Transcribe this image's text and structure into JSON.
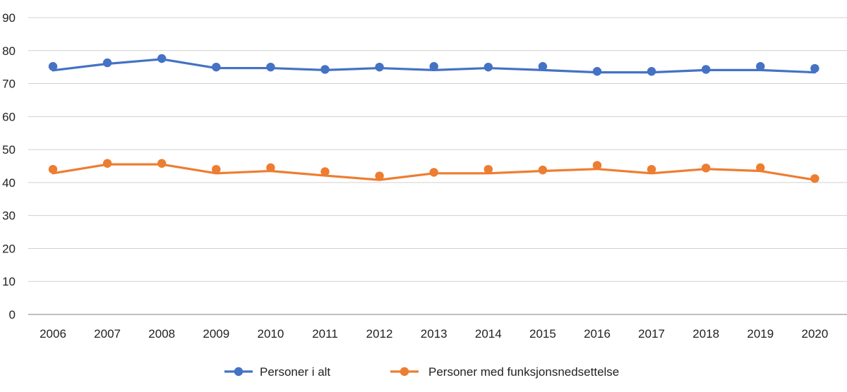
{
  "chart_data": {
    "type": "line",
    "title": "",
    "xlabel": "",
    "ylabel": "",
    "ylim": [
      0,
      90
    ],
    "yticks": [
      0,
      10,
      20,
      30,
      40,
      50,
      60,
      70,
      80,
      90
    ],
    "grid": true,
    "legend_position": "bottom",
    "categories": [
      "2006",
      "2007",
      "2008",
      "2009",
      "2010",
      "2011",
      "2012",
      "2013",
      "2014",
      "2015",
      "2016",
      "2017",
      "2018",
      "2019",
      "2020"
    ],
    "series": [
      {
        "name": "Personer i alt",
        "color": "#4472c4",
        "line_values": [
          74,
          76,
          77.4,
          74.7,
          74.7,
          74.1,
          74.7,
          74.1,
          74.7,
          74.1,
          73.4,
          73.4,
          74.1,
          74.1,
          73.4
        ],
        "marker_values": [
          75.2,
          76.3,
          77.6,
          75,
          75,
          74.3,
          75,
          75.2,
          75,
          75.2,
          73.7,
          73.7,
          74.3,
          75.2,
          74.6
        ]
      },
      {
        "name": "Personer med funksjonsnedsettelse",
        "color": "#ed7d31",
        "line_values": [
          42.8,
          45.5,
          45.5,
          42.8,
          43.5,
          42.1,
          40.8,
          42.8,
          42.8,
          43.5,
          44.1,
          42.8,
          44.1,
          43.5,
          40.8
        ],
        "marker_values": [
          44,
          45.8,
          45.8,
          44,
          44.5,
          43.3,
          42,
          43.1,
          44,
          43.8,
          45.2,
          44,
          44.4,
          44.5,
          41.2
        ]
      }
    ]
  }
}
